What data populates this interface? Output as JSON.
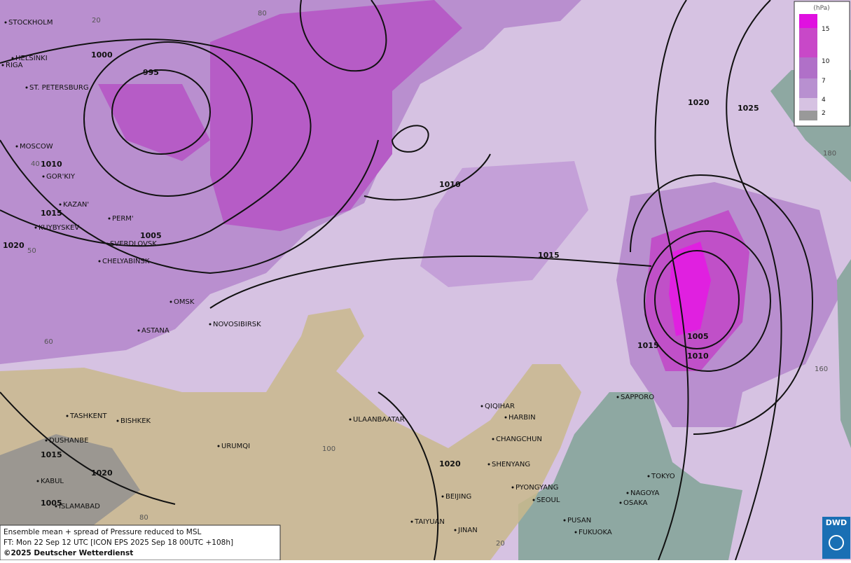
{
  "map": {
    "cities": [
      "STOCKHOLM",
      "HELSINKI",
      "RIGA",
      "ST. PETERSBURG",
      "MOSCOW",
      "GOR'KIY",
      "KAZAN'",
      "KUYBYSKEV",
      "PERM'",
      "SVERDLOVSK",
      "CHELYABINSK",
      "OMSK",
      "ASTANA",
      "NOVOSIBIRSK",
      "TASHKENT",
      "BISHKEK",
      "DUSHANBE",
      "KABUL",
      "ISLAMABAD",
      "URUMQI",
      "ULAANBAATAR",
      "QIQIHAR",
      "HARBIN",
      "CHANGCHUN",
      "SHENYANG",
      "BEIJING",
      "PYONGYANG",
      "SEOUL",
      "TAIYUAN",
      "JINAN",
      "PUSAN",
      "FUKUOKA",
      "OSAKA",
      "NAGOYA",
      "TOKYO",
      "SAPPORO"
    ],
    "isobar_labels": [
      1000,
      995,
      1010,
      1015,
      1020,
      1005,
      1010,
      1015,
      1020,
      1025,
      1015,
      1005,
      1010,
      1020,
      1015,
      1020,
      1005
    ],
    "grid_labels": [
      20,
      80,
      40,
      50,
      60,
      100,
      80,
      20,
      180,
      160
    ],
    "legend": {
      "unit": "(hPa)",
      "ticks": [
        15,
        10,
        7,
        4,
        2
      ]
    },
    "info": [
      "Ensemble mean + spread of Pressure reduced to MSL",
      "FT: Mon 22 Sep 12 UTC [ICON EPS 2025 Sep 18 00UTC +108h]",
      "©2025 Deutscher Wetterdienst"
    ],
    "logo": "DWD"
  }
}
